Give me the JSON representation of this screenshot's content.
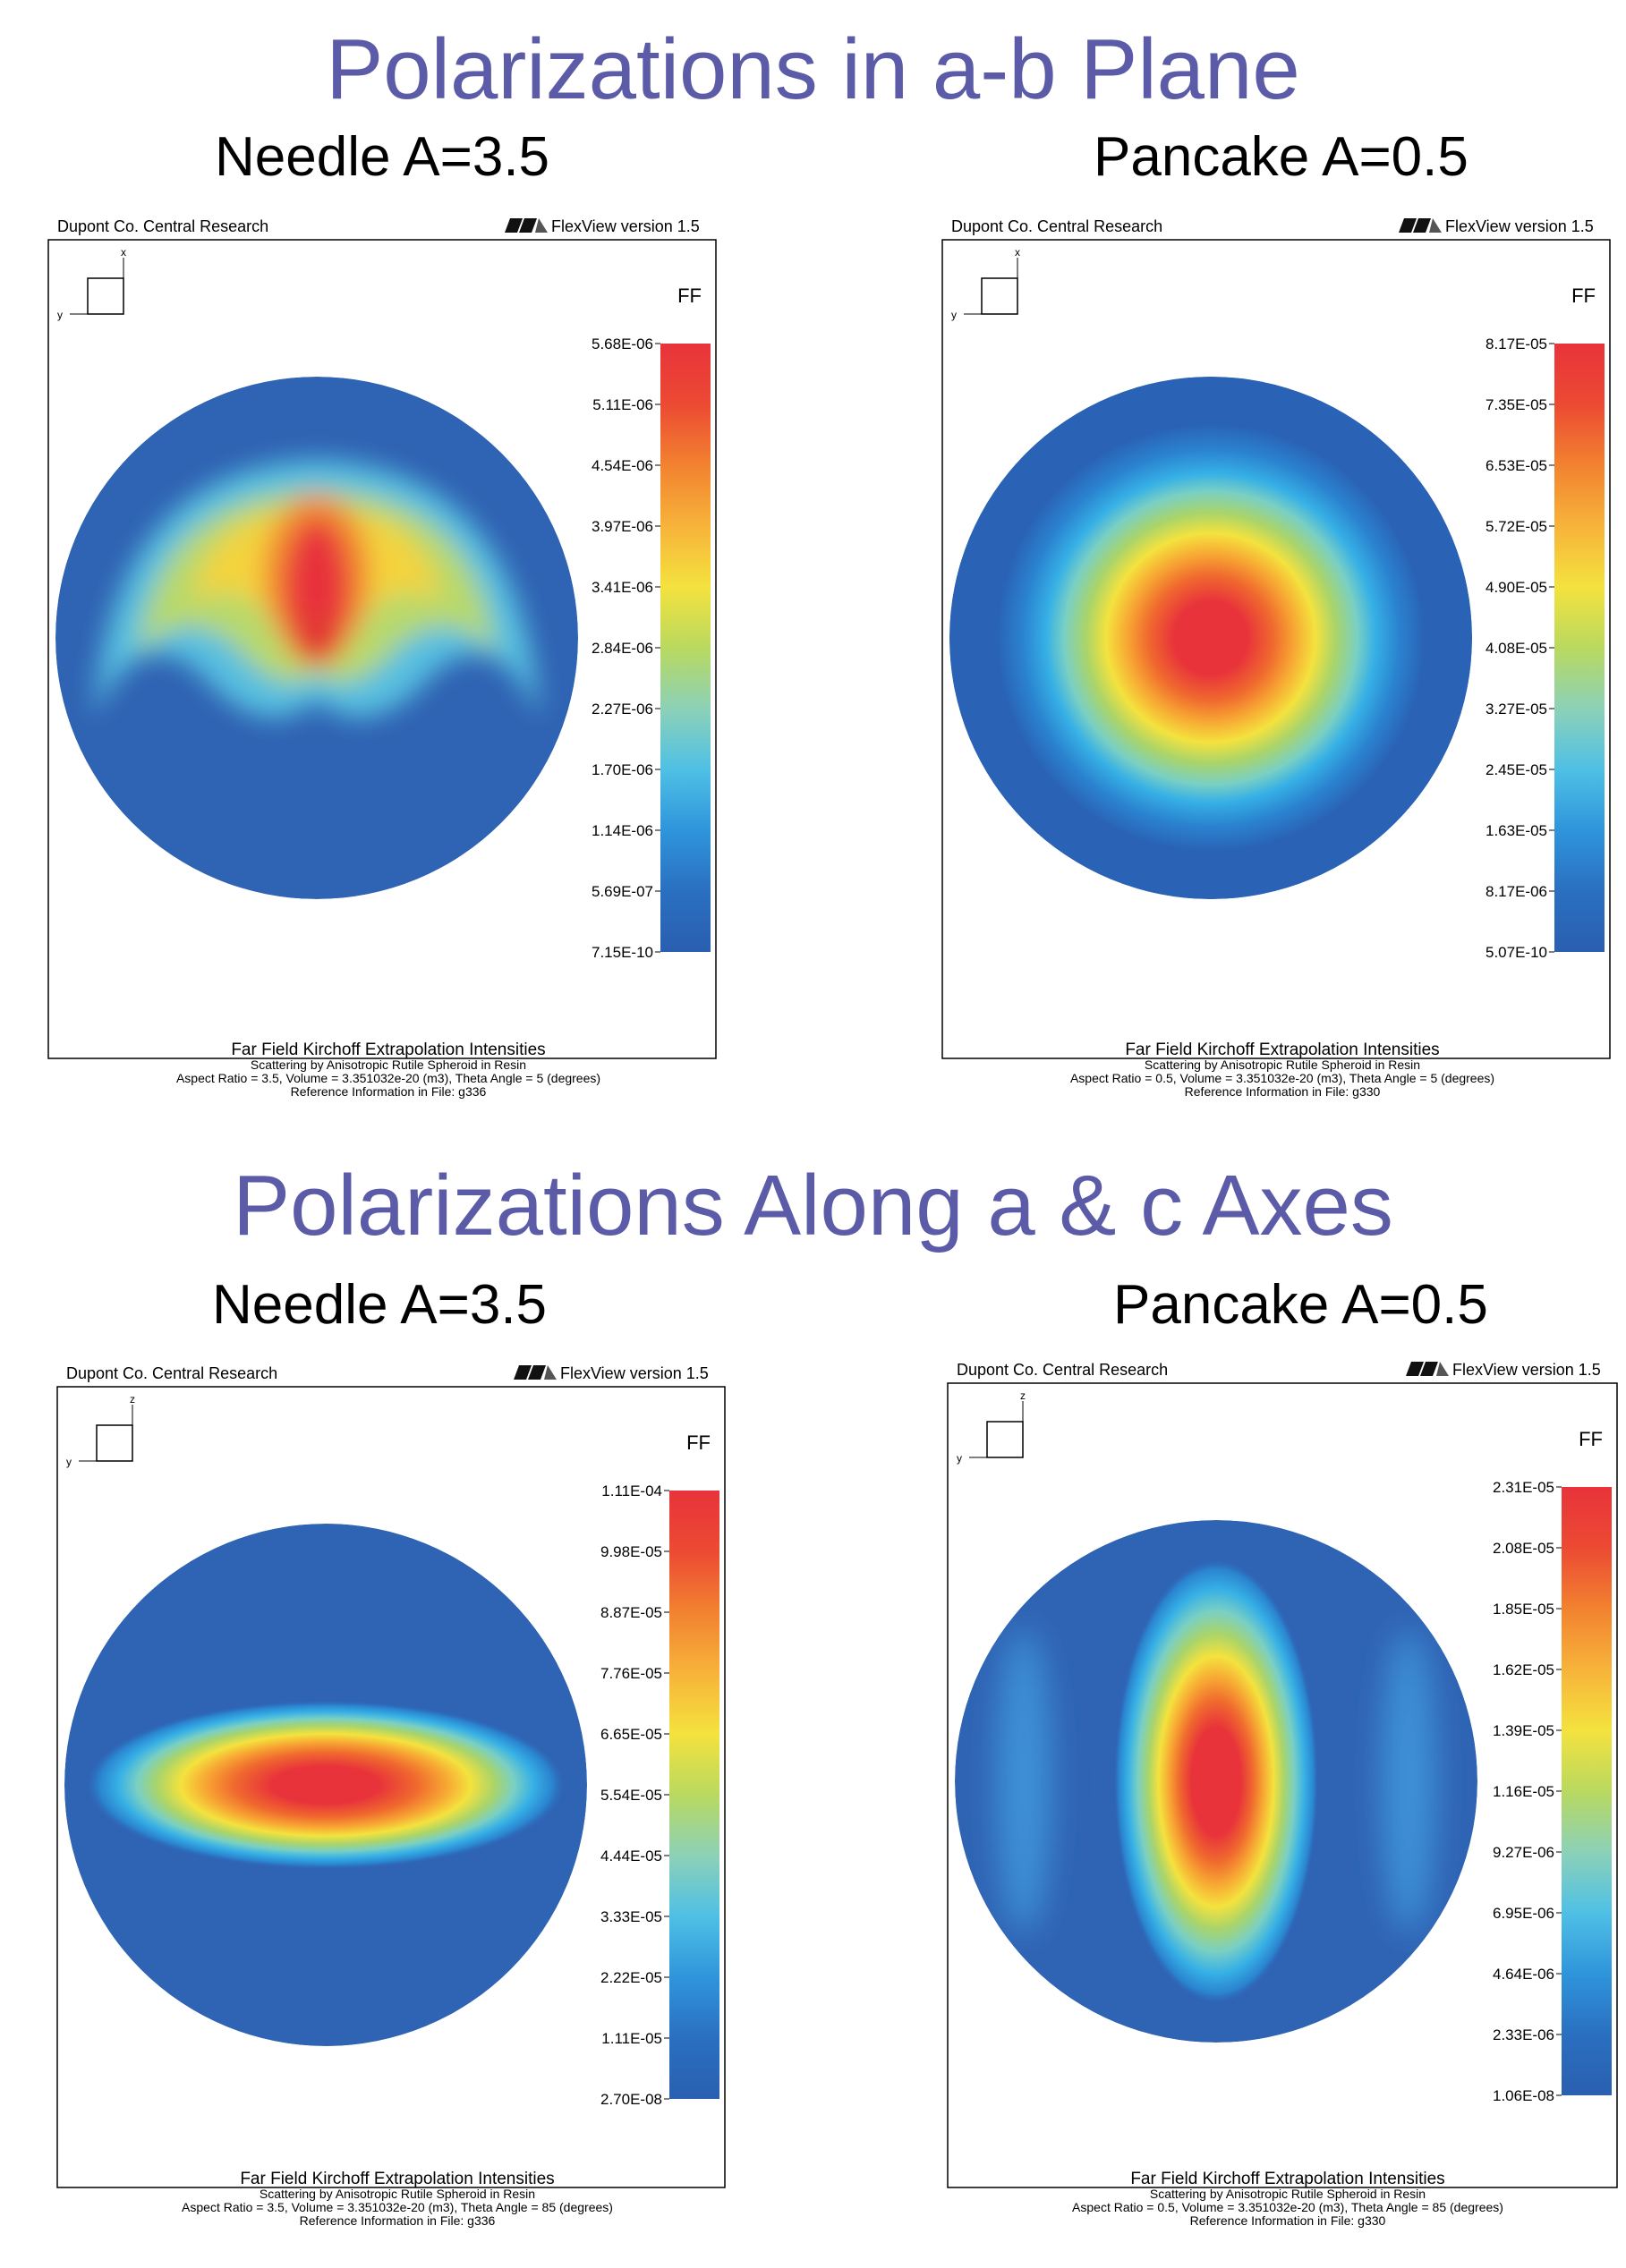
{
  "sections": [
    {
      "title": "Polarizations in a-b Plane",
      "left_label": "Needle A=3.5",
      "right_label": "Pancake A=0.5"
    },
    {
      "title": "Polarizations Along a & c Axes",
      "left_label": "Needle A=3.5",
      "right_label": "Pancake A=0.5"
    }
  ],
  "panels": [
    {
      "header_left": "Dupont Co. Central Research",
      "logo": "WA",
      "header_right": "FlexView version 1.5",
      "axis_v": "x",
      "axis_h": "y",
      "legend_title": "FF",
      "legend_values": [
        "5.68E-06",
        "5.11E-06",
        "4.54E-06",
        "3.97E-06",
        "3.41E-06",
        "2.84E-06",
        "2.27E-06",
        "1.70E-06",
        "1.14E-06",
        "5.69E-07",
        "7.15E-10"
      ],
      "footer_title": "Far Field Kirchoff Extrapolation Intensities",
      "footer_line1": "Scattering by Anisotropic Rutile Spheroid in Resin",
      "footer_line2": "Aspect Ratio = 3.5, Volume = 3.351032e-20 (m3), Theta Angle = 5 (degrees)",
      "footer_line3": "Reference Information in File: g336",
      "pattern": "needle-ab"
    },
    {
      "header_left": "Dupont Co. Central Research",
      "logo": "WA",
      "header_right": "FlexView version 1.5",
      "axis_v": "x",
      "axis_h": "y",
      "legend_title": "FF",
      "legend_values": [
        "8.17E-05",
        "7.35E-05",
        "6.53E-05",
        "5.72E-05",
        "4.90E-05",
        "4.08E-05",
        "3.27E-05",
        "2.45E-05",
        "1.63E-05",
        "8.17E-06",
        "5.07E-10"
      ],
      "footer_title": "Far Field Kirchoff Extrapolation Intensities",
      "footer_line1": "Scattering by Anisotropic Rutile Spheroid in Resin",
      "footer_line2": "Aspect Ratio = 0.5, Volume = 3.351032e-20 (m3), Theta Angle = 5 (degrees)",
      "footer_line3": "Reference Information in File: g330",
      "pattern": "pancake-ab"
    },
    {
      "header_left": "Dupont Co. Central Research",
      "logo": "WA",
      "header_right": "FlexView version 1.5",
      "axis_v": "z",
      "axis_h": "y",
      "legend_title": "FF",
      "legend_values": [
        "1.11E-04",
        "9.98E-05",
        "8.87E-05",
        "7.76E-05",
        "6.65E-05",
        "5.54E-05",
        "4.44E-05",
        "3.33E-05",
        "2.22E-05",
        "1.11E-05",
        "2.70E-08"
      ],
      "footer_title": "Far Field Kirchoff Extrapolation Intensities",
      "footer_line1": "Scattering by Anisotropic Rutile Spheroid in Resin",
      "footer_line2": "Aspect Ratio = 3.5, Volume = 3.351032e-20 (m3), Theta Angle = 85 (degrees)",
      "footer_line3": "Reference Information in File: g336",
      "pattern": "needle-ac"
    },
    {
      "header_left": "Dupont Co. Central Research",
      "logo": "WA",
      "header_right": "FlexView version 1.5",
      "axis_v": "z",
      "axis_h": "y",
      "legend_title": "FF",
      "legend_values": [
        "2.31E-05",
        "2.08E-05",
        "1.85E-05",
        "1.62E-05",
        "1.39E-05",
        "1.16E-05",
        "9.27E-06",
        "6.95E-06",
        "4.64E-06",
        "2.33E-06",
        "1.06E-08"
      ],
      "footer_title": "Far Field Kirchoff Extrapolation Intensities",
      "footer_line1": "Scattering by Anisotropic Rutile Spheroid in Resin",
      "footer_line2": "Aspect Ratio = 0.5, Volume = 3.351032e-20 (m3), Theta Angle = 85 (degrees)",
      "footer_line3": "Reference Information in File: g330",
      "pattern": "pancake-ac"
    }
  ],
  "colors": {
    "title": "#5b5ba8",
    "low": "#2a62b5",
    "high": "#e8333a"
  }
}
